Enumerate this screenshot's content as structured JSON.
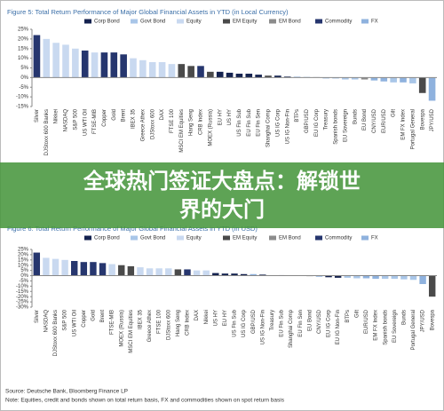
{
  "chart_data": [
    {
      "type": "bar",
      "title": "Figure 5: Total Return Performance of Major Global Financial Assets in YTD (in Local Currency)",
      "legend": [
        {
          "name": "Corp Bond",
          "color": "#14224f"
        },
        {
          "name": "Govt Bond",
          "color": "#a9c6e8"
        },
        {
          "name": "Equity",
          "color": "#c9d9f0"
        },
        {
          "name": "EM Equity",
          "color": "#4a4a4a"
        },
        {
          "name": "EM Bond",
          "color": "#8c8c8c"
        },
        {
          "name": "Commodity",
          "color": "#26366e"
        },
        {
          "name": "FX",
          "color": "#8fb2de"
        }
      ],
      "categories": [
        "Silver",
        "DJStoxx 600 Banks",
        "Nikkei",
        "NASDAQ",
        "S&P 500",
        "US WTI Oil",
        "FTSE-MIB",
        "Copper",
        "Gold",
        "Brent",
        "IBEX 35",
        "Greece Athex",
        "DJStoxx 600",
        "DAX",
        "FTSE 100",
        "MSCI EM Equities",
        "Hang Seng",
        "CRB Index",
        "MOEX (Russia)",
        "EU HY",
        "US HY",
        "US Fin Sub",
        "EU Fin Sub",
        "EU Fin Sen",
        "Shanghai Comp",
        "US IG Corp",
        "US IG Non-Fin",
        "BTPs",
        "GBP/USD",
        "EU IG Corp",
        "Treasury",
        "Spanish bonds",
        "EU Sovereign",
        "Bunds",
        "EU Bond",
        "CNY/USD",
        "EUR/USD",
        "Gilt",
        "EM FX Index",
        "Portugal General",
        "Bovespa",
        "JPY/USD"
      ],
      "values": [
        22,
        20,
        18,
        17,
        15,
        14,
        13,
        13,
        13,
        12,
        10,
        9,
        8,
        8,
        7,
        7,
        6,
        6,
        3,
        3,
        2.5,
        2,
        2,
        1.5,
        1,
        1,
        0.5,
        0.5,
        0.3,
        0.2,
        -0.5,
        -0.5,
        -1,
        -1,
        -1,
        -1.5,
        -2,
        -2.5,
        -2.5,
        -3,
        -8,
        -12
      ],
      "colors": [
        "#26366e",
        "#c9d9f0",
        "#c9d9f0",
        "#c9d9f0",
        "#c9d9f0",
        "#26366e",
        "#c9d9f0",
        "#26366e",
        "#26366e",
        "#26366e",
        "#c9d9f0",
        "#c9d9f0",
        "#c9d9f0",
        "#c9d9f0",
        "#c9d9f0",
        "#4a4a4a",
        "#4a4a4a",
        "#26366e",
        "#4a4a4a",
        "#14224f",
        "#14224f",
        "#14224f",
        "#14224f",
        "#14224f",
        "#4a4a4a",
        "#14224f",
        "#14224f",
        "#a9c6e8",
        "#8fb2de",
        "#14224f",
        "#a9c6e8",
        "#a9c6e8",
        "#a9c6e8",
        "#a9c6e8",
        "#8c8c8c",
        "#8fb2de",
        "#8fb2de",
        "#a9c6e8",
        "#8fb2de",
        "#a9c6e8",
        "#4a4a4a",
        "#8fb2de"
      ],
      "ylim": [
        -15,
        25
      ],
      "yticks": [
        {
          "value": 25,
          "label": "25%"
        },
        {
          "value": 20,
          "label": "20%"
        },
        {
          "value": 15,
          "label": "15%"
        },
        {
          "value": 10,
          "label": "10%"
        },
        {
          "value": 5,
          "label": "5%"
        },
        {
          "value": 0,
          "label": "0%"
        },
        {
          "value": -5,
          "label": "-5%"
        },
        {
          "value": -10,
          "label": "-10%"
        },
        {
          "value": -15,
          "label": "-15%"
        }
      ],
      "grid": false
    },
    {
      "type": "bar",
      "title": "Figure 6: Total Return Performance of Major Global Financial Assets in YTD (in USD)",
      "legend": [
        {
          "name": "Corp Bond",
          "color": "#14224f"
        },
        {
          "name": "Govt Bond",
          "color": "#a9c6e8"
        },
        {
          "name": "Equity",
          "color": "#c9d9f0"
        },
        {
          "name": "EM Equity",
          "color": "#4a4a4a"
        },
        {
          "name": "EM Bond",
          "color": "#8c8c8c"
        },
        {
          "name": "Commodity",
          "color": "#26366e"
        },
        {
          "name": "FX",
          "color": "#8fb2de"
        }
      ],
      "categories": [
        "Silver",
        "NASDAQ",
        "DJStoxx 600 Banks",
        "S&P 500",
        "US WTI Oil",
        "Copper",
        "Gold",
        "Brent",
        "FTSE-MIB",
        "MOEX (Russia)",
        "MSCI EM Equities",
        "IBEX 35",
        "Greece Athex",
        "FTSE 100",
        "DJStoxx 600",
        "Hang Seng",
        "CRB Index",
        "DAX",
        "Nikkei",
        "US HY",
        "EU HY",
        "US Fin Sub",
        "US IG Corp",
        "GBP/USD",
        "US IG Non-Fin",
        "Treasury",
        "EU Fin Sub",
        "Shanghai Comp",
        "EU Fin Sen",
        "EU Bond",
        "CNY/USD",
        "EU IG Corp",
        "EU IG Non-Fin",
        "BTPs",
        "Gilt",
        "EUR/USD",
        "EM FX Index",
        "Spanish bonds",
        "EU Sovereign",
        "Bunds",
        "Portugal General",
        "JPY/USD",
        "Bovespa"
      ],
      "values": [
        22,
        17,
        16,
        15,
        14,
        13,
        13,
        12,
        11,
        10,
        9,
        8,
        7,
        7,
        7,
        6,
        6,
        5,
        5,
        2.5,
        2,
        2,
        1.5,
        1.5,
        1,
        0.5,
        0.5,
        0.2,
        0.2,
        -0.5,
        -1,
        -1.5,
        -2,
        -2,
        -2.5,
        -2.5,
        -3,
        -3,
        -3,
        -3.5,
        -4,
        -8,
        -20
      ],
      "colors": [
        "#26366e",
        "#c9d9f0",
        "#c9d9f0",
        "#c9d9f0",
        "#26366e",
        "#26366e",
        "#26366e",
        "#26366e",
        "#c9d9f0",
        "#4a4a4a",
        "#4a4a4a",
        "#c9d9f0",
        "#c9d9f0",
        "#c9d9f0",
        "#c9d9f0",
        "#4a4a4a",
        "#26366e",
        "#c9d9f0",
        "#c9d9f0",
        "#14224f",
        "#14224f",
        "#14224f",
        "#14224f",
        "#8fb2de",
        "#14224f",
        "#a9c6e8",
        "#14224f",
        "#4a4a4a",
        "#14224f",
        "#8c8c8c",
        "#8fb2de",
        "#14224f",
        "#14224f",
        "#a9c6e8",
        "#a9c6e8",
        "#8fb2de",
        "#8fb2de",
        "#a9c6e8",
        "#a9c6e8",
        "#a9c6e8",
        "#a9c6e8",
        "#8fb2de",
        "#4a4a4a"
      ],
      "ylim": [
        -30,
        25
      ],
      "yticks": [
        {
          "value": 25,
          "label": "25%"
        },
        {
          "value": 20,
          "label": "20%"
        },
        {
          "value": 15,
          "label": "15%"
        },
        {
          "value": 10,
          "label": "10%"
        },
        {
          "value": 5,
          "label": "5%"
        },
        {
          "value": 0,
          "label": "0%"
        },
        {
          "value": -5,
          "label": "-5%"
        },
        {
          "value": -10,
          "label": "-10%"
        },
        {
          "value": -15,
          "label": "-15%"
        },
        {
          "value": -20,
          "label": "-20%"
        },
        {
          "value": -25,
          "label": "-25%"
        },
        {
          "value": -30,
          "label": "-30%"
        }
      ],
      "grid": false
    }
  ],
  "source": "Source: Deutsche Bank, Bloomberg Finance LP",
  "note": "Note: Equities, credit and bonds shown on total return basis, FX and commodities shown on spot return basis",
  "banner": "全球热门签证大盘点：解锁世界的大门"
}
